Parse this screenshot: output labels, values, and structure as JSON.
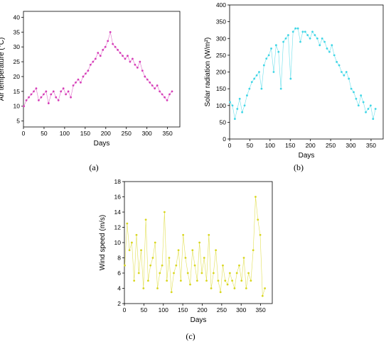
{
  "chart_data": [
    {
      "type": "line",
      "panel_label": "(a)",
      "xlabel": "Days",
      "ylabel": "Air temperature (°C)",
      "xlim": [
        0,
        380
      ],
      "ylim": [
        3,
        42
      ],
      "xticks": [
        0,
        50,
        100,
        150,
        200,
        250,
        300,
        350
      ],
      "yticks": [
        5,
        10,
        15,
        20,
        25,
        30,
        35,
        40
      ],
      "color": "#d63fb8",
      "series": [
        {
          "markers": true,
          "x": [
            1,
            7,
            13,
            19,
            25,
            31,
            37,
            43,
            49,
            55,
            61,
            67,
            73,
            79,
            85,
            91,
            97,
            103,
            109,
            115,
            121,
            127,
            133,
            139,
            145,
            151,
            157,
            163,
            169,
            175,
            181,
            187,
            193,
            199,
            205,
            211,
            217,
            223,
            229,
            235,
            241,
            247,
            253,
            259,
            265,
            271,
            277,
            283,
            289,
            295,
            301,
            307,
            313,
            319,
            325,
            331,
            337,
            343,
            349,
            355,
            361
          ],
          "y": [
            10,
            12,
            13,
            14,
            15,
            16,
            12,
            13,
            14,
            15,
            11,
            14,
            15,
            13,
            12,
            15,
            16,
            14,
            15,
            13,
            17,
            18,
            19,
            18,
            20,
            21,
            22,
            24,
            25,
            26,
            28,
            27,
            29,
            30,
            32,
            35,
            31,
            30,
            29,
            28,
            27,
            26,
            27,
            25,
            26,
            24,
            23,
            25,
            22,
            20,
            19,
            18,
            17,
            16,
            17,
            15,
            14,
            13,
            12,
            14,
            15
          ]
        }
      ]
    },
    {
      "type": "line",
      "panel_label": "(b)",
      "xlabel": "Days",
      "ylabel": "Solar radiation (W/m²)",
      "xlim": [
        0,
        380
      ],
      "ylim": [
        0,
        400
      ],
      "xticks": [
        0,
        50,
        100,
        150,
        200,
        250,
        300,
        350
      ],
      "yticks": [
        0,
        50,
        100,
        150,
        200,
        250,
        300,
        350,
        400
      ],
      "color": "#3fd6e6",
      "series": [
        {
          "markers": true,
          "x": [
            1,
            7,
            13,
            19,
            25,
            31,
            37,
            43,
            49,
            55,
            61,
            67,
            73,
            79,
            85,
            91,
            97,
            103,
            109,
            115,
            121,
            127,
            133,
            139,
            145,
            151,
            157,
            163,
            169,
            175,
            181,
            187,
            193,
            199,
            205,
            211,
            217,
            223,
            229,
            235,
            241,
            247,
            253,
            259,
            265,
            271,
            277,
            283,
            289,
            295,
            301,
            307,
            313,
            319,
            325,
            331,
            337,
            343,
            349,
            355,
            361
          ],
          "y": [
            110,
            100,
            60,
            90,
            120,
            80,
            100,
            130,
            150,
            170,
            180,
            190,
            200,
            150,
            220,
            240,
            250,
            270,
            200,
            280,
            260,
            150,
            290,
            300,
            310,
            180,
            320,
            330,
            330,
            290,
            320,
            320,
            310,
            300,
            320,
            310,
            300,
            280,
            300,
            290,
            270,
            260,
            280,
            250,
            230,
            220,
            200,
            190,
            200,
            180,
            150,
            140,
            120,
            100,
            130,
            110,
            80,
            90,
            100,
            60,
            90
          ]
        }
      ]
    },
    {
      "type": "line",
      "panel_label": "(c)",
      "xlabel": "Days",
      "ylabel": "Wind speed (m/s)",
      "xlim": [
        0,
        380
      ],
      "ylim": [
        2,
        18
      ],
      "xticks": [
        0,
        50,
        100,
        150,
        200,
        250,
        300,
        350
      ],
      "yticks": [
        2,
        4,
        6,
        8,
        10,
        12,
        14,
        16,
        18
      ],
      "color": "#d8d61e",
      "series": [
        {
          "markers": true,
          "x": [
            1,
            7,
            13,
            19,
            25,
            31,
            37,
            43,
            49,
            55,
            61,
            67,
            73,
            79,
            85,
            91,
            97,
            103,
            109,
            115,
            121,
            127,
            133,
            139,
            145,
            151,
            157,
            163,
            169,
            175,
            181,
            187,
            193,
            199,
            205,
            211,
            217,
            223,
            229,
            235,
            241,
            247,
            253,
            259,
            265,
            271,
            277,
            283,
            289,
            295,
            301,
            307,
            313,
            319,
            325,
            331,
            337,
            343,
            349,
            355,
            361
          ],
          "y": [
            7,
            12.5,
            9,
            10,
            5,
            11,
            6,
            9,
            4,
            13,
            5,
            7,
            8,
            10,
            4,
            6,
            7,
            14,
            5,
            8,
            3.5,
            6,
            7,
            9,
            5,
            11,
            8,
            6,
            4.5,
            9,
            7,
            5,
            10,
            6,
            8,
            5,
            11,
            4,
            6,
            9,
            5,
            3.5,
            7,
            5,
            4.5,
            6,
            5,
            4,
            6,
            7,
            5,
            8,
            4,
            6,
            5,
            9,
            16,
            13,
            11,
            3,
            4
          ]
        }
      ]
    }
  ]
}
